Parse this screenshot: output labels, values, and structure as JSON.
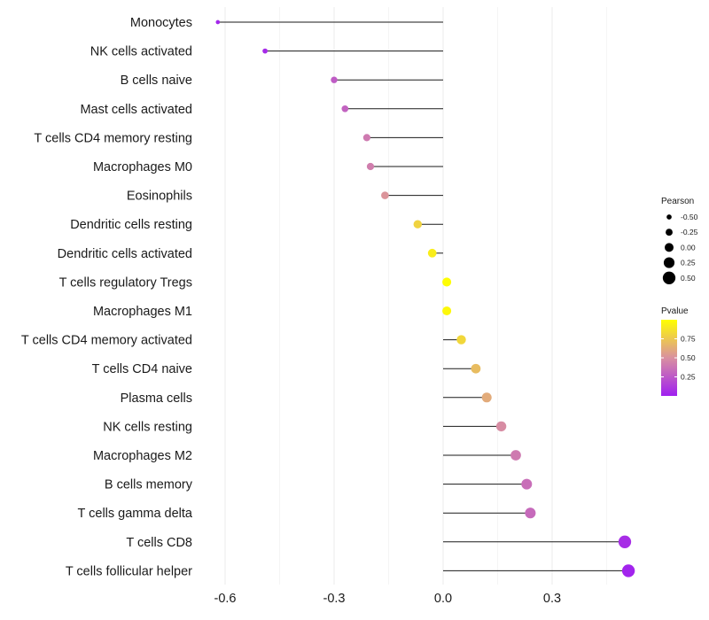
{
  "chart_data": {
    "type": "lollipop",
    "title": "",
    "xlabel": "",
    "ylabel": "",
    "xlim": [
      -0.62,
      0.52
    ],
    "x_ticks": [
      -0.6,
      -0.3,
      0.0,
      0.3
    ],
    "x_tick_labels": [
      "-0.6",
      "-0.3",
      "0.0",
      "0.3"
    ],
    "grid": true,
    "legend_position": "right",
    "categories": [
      "Monocytes",
      "NK cells activated",
      "B cells naive",
      "Mast cells activated",
      "T cells CD4 memory resting",
      "Macrophages M0",
      "Eosinophils",
      "Dendritic cells resting",
      "Dendritic cells activated",
      "T cells regulatory  Tregs ",
      "Macrophages M1",
      "T cells CD4 memory activated",
      "T cells CD4 naive",
      "Plasma cells",
      "NK cells resting",
      "Macrophages M2",
      "B cells memory",
      "T cells gamma delta",
      "T cells CD8",
      "T cells follicular helper"
    ],
    "pearson": [
      -0.62,
      -0.49,
      -0.3,
      -0.27,
      -0.21,
      -0.2,
      -0.16,
      -0.07,
      -0.03,
      0.01,
      0.01,
      0.05,
      0.09,
      0.12,
      0.16,
      0.2,
      0.23,
      0.24,
      0.5,
      0.51
    ],
    "pvalue": [
      0.03,
      0.05,
      0.27,
      0.3,
      0.4,
      0.42,
      0.52,
      0.8,
      0.92,
      0.99,
      0.97,
      0.82,
      0.7,
      0.62,
      0.48,
      0.4,
      0.35,
      0.33,
      0.06,
      0.02
    ],
    "legend_size": {
      "title": "Pearson",
      "values": [
        -0.5,
        -0.25,
        0.0,
        0.25,
        0.5
      ],
      "labels": [
        "-0.50",
        "-0.25",
        "0.00",
        "0.25",
        "0.50"
      ]
    },
    "legend_color": {
      "title": "Pvalue",
      "range": [
        0.0,
        1.0
      ],
      "ticks": [
        0.25,
        0.5,
        0.75
      ],
      "tick_labels": [
        "0.25",
        "0.50",
        "0.75"
      ],
      "color_low": "#a020f0",
      "color_mid": "#d990a0",
      "color_high": "#ffff00"
    }
  }
}
